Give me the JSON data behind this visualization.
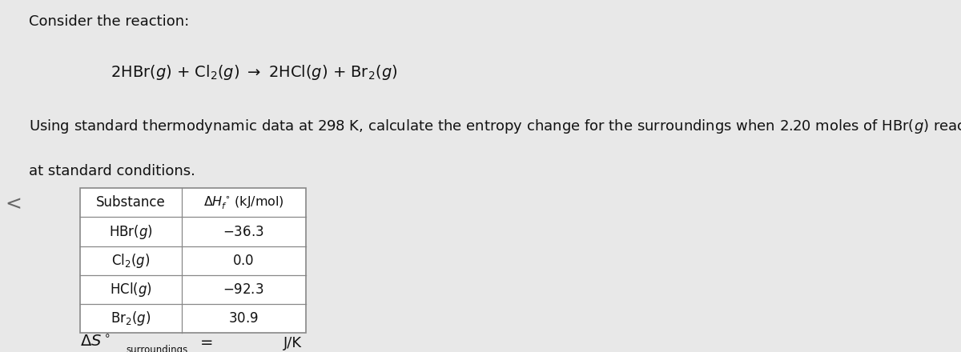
{
  "background_color": "#e8e8e8",
  "title_line1": "Consider the reaction:",
  "reaction_math": "2HBr($g$) + Cl$_2$($g$) $\\rightarrow$ 2HCl($g$) + Br$_2$($g$)",
  "desc_line1": "Using standard thermodynamic data at 298 K, calculate the entropy change for the surroundings when 2.20 moles of HBr(",
  "desc_italic": "g",
  "desc_line1_end": ") react",
  "desc_line2": "at standard conditions.",
  "table_header_col1": "Substance",
  "table_header_col2_math": "$\\Delta H_f^\\circ\\,(\\mathrm{kJ/mol})$",
  "row_labels_math": [
    "HBr($g$)",
    "Cl$_2$($g$)",
    "HCl($g$)",
    "Br$_2$($g$)"
  ],
  "row_values": [
    "-36.3",
    "0.0",
    "-92.3",
    "30.9"
  ],
  "answer_delta_s": "$\\Delta S^\\circ$",
  "answer_subscript": "surroundings",
  "answer_eq": "=",
  "answer_units": "J/K",
  "text_color": "#111111",
  "table_border_color": "#888888",
  "font_size_title": 13,
  "font_size_body": 13,
  "font_size_table": 12,
  "font_size_answer_sub": 8.5,
  "chevron": "<",
  "chevron_color": "#666666"
}
